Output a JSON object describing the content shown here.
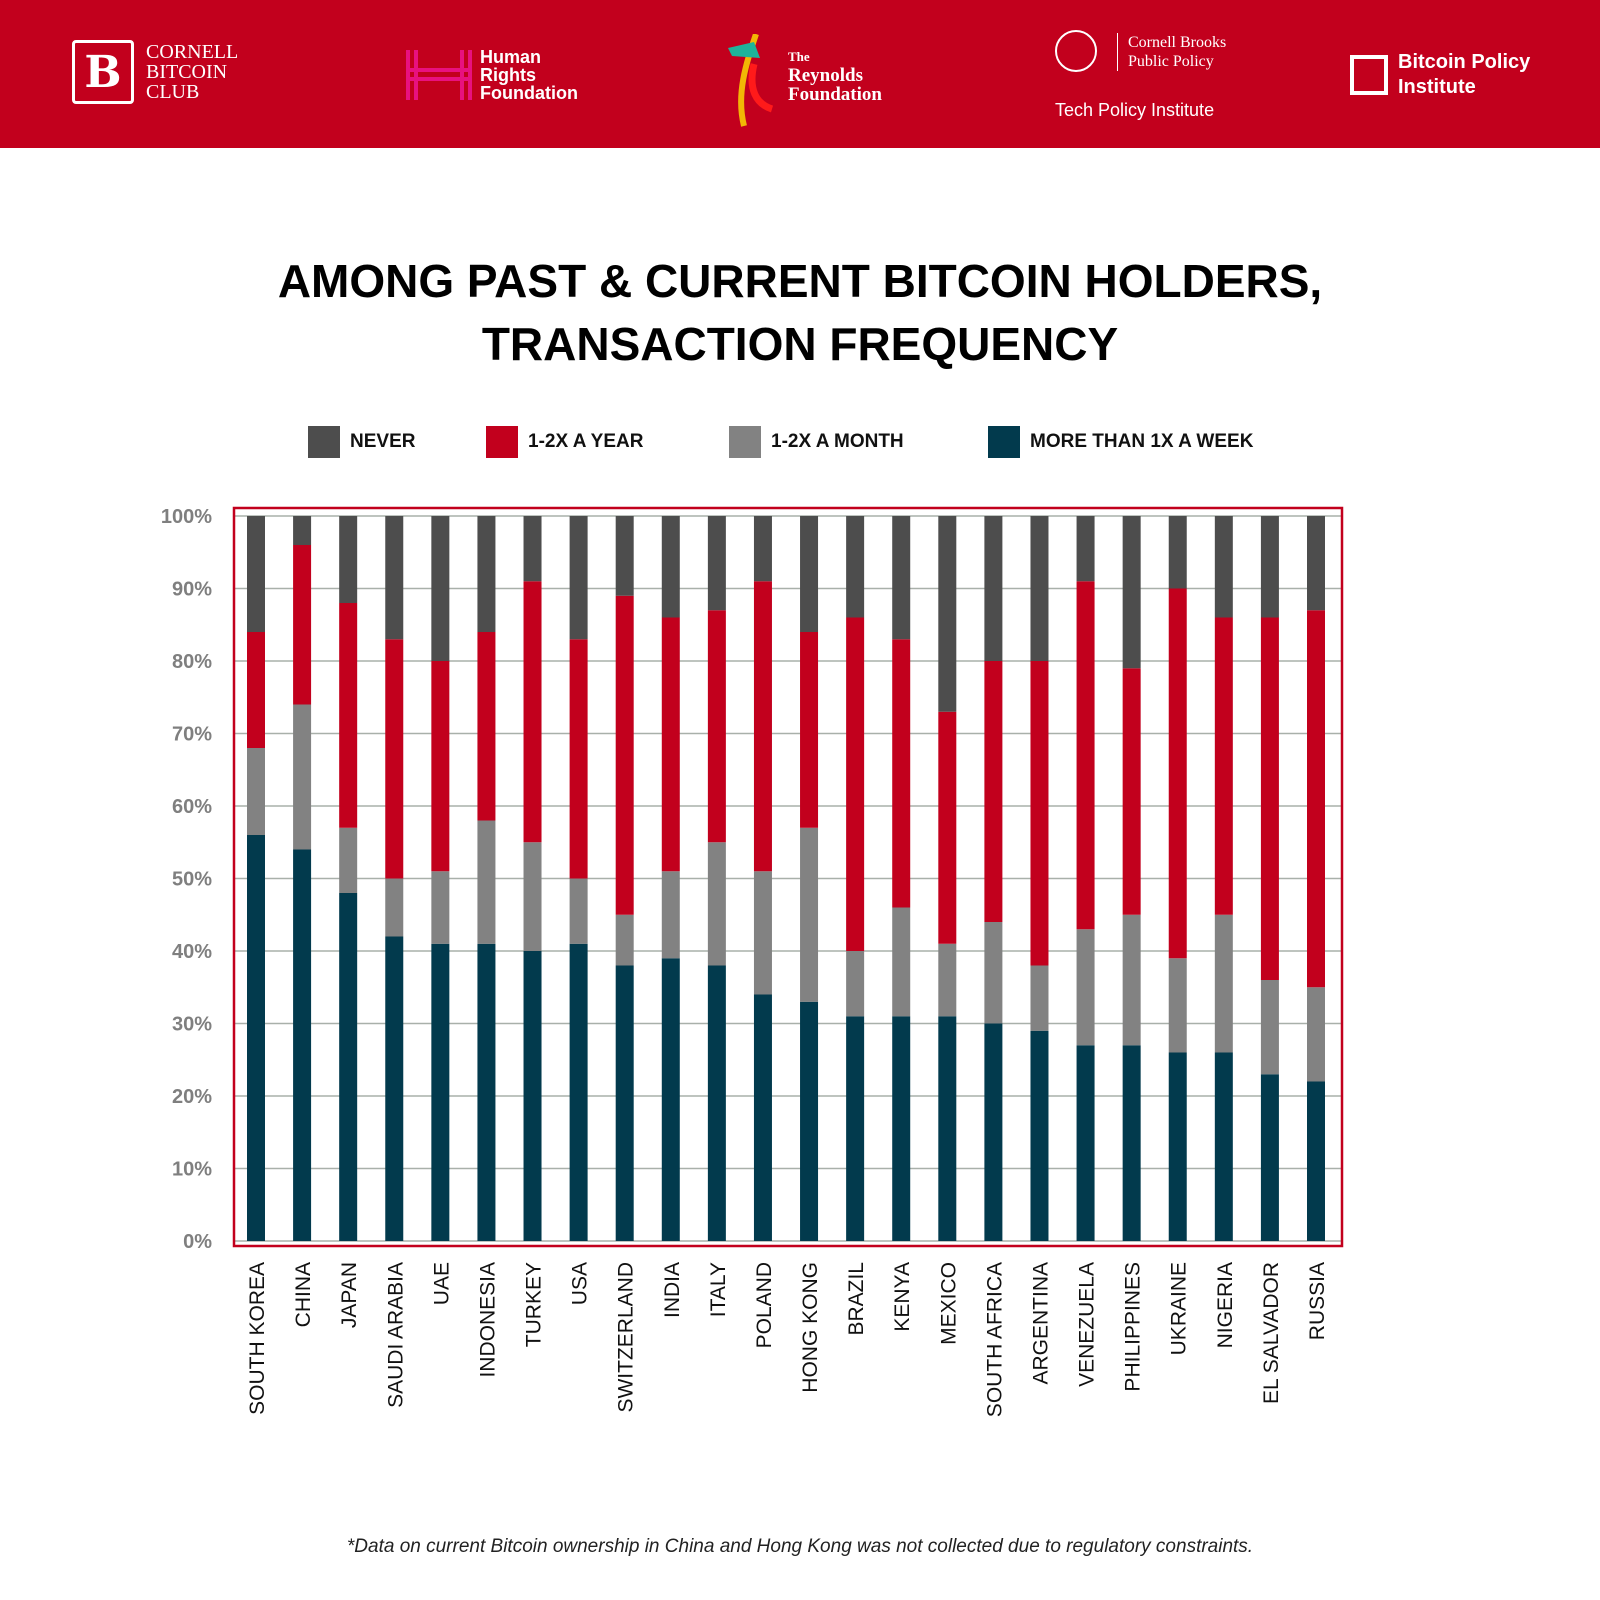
{
  "header": {
    "logos": {
      "cornell_bitcoin_club": "CORNELL\nBITCOIN\nCLUB",
      "human_rights_foundation": "Human\nRights\nFoundation",
      "reynolds_the": "The",
      "reynolds_name": "Reynolds\nFoundation",
      "cornell_brooks": "Cornell Brooks\nPublic Policy",
      "tech_policy": "Tech Policy Institute",
      "bitcoin_policy_institute": "Bitcoin Policy\nInstitute"
    }
  },
  "footnote": "*Data on current Bitcoin ownership in China and Hong Kong was not collected due to regulatory constraints.",
  "chart_data": {
    "type": "bar",
    "stacked": true,
    "title_line1": "AMONG PAST & CURRENT BITCOIN HOLDERS,",
    "title_line2": "TRANSACTION FREQUENCY",
    "xlabel": "",
    "ylabel": "",
    "ylim": [
      0,
      100
    ],
    "yticks": [
      "0%",
      "10%",
      "20%",
      "30%",
      "40%",
      "50%",
      "60%",
      "70%",
      "80%",
      "90%",
      "100%"
    ],
    "grid": true,
    "legend_position": "top",
    "legend": [
      "NEVER",
      "1-2X A YEAR",
      "1-2X A MONTH",
      "MORE THAN 1X A WEEK"
    ],
    "colors": {
      "never": "#4d4d4d",
      "year": "#c2001d",
      "month": "#828282",
      "week": "#023a4d",
      "frame": "#c2001d",
      "grid": "#a9b0aa",
      "tick": "#7f7f7f"
    },
    "categories": [
      "SOUTH KOREA",
      "CHINA",
      "JAPAN",
      "SAUDI ARABIA",
      "UAE",
      "INDONESIA",
      "TURKEY",
      "USA",
      "SWITZERLAND",
      "INDIA",
      "ITALY",
      "POLAND",
      "HONG KONG",
      "BRAZIL",
      "KENYA",
      "MEXICO",
      "SOUTH AFRICA",
      "ARGENTINA",
      "VENEZUELA",
      "PHILIPPINES",
      "UKRAINE",
      "NIGERIA",
      "EL SALVADOR",
      "RUSSIA"
    ],
    "series": [
      {
        "name": "MORE THAN 1X A WEEK",
        "key": "week",
        "values": [
          56,
          54,
          48,
          42,
          41,
          41,
          40,
          41,
          38,
          39,
          38,
          34,
          33,
          31,
          31,
          31,
          30,
          29,
          27,
          27,
          26,
          26,
          23,
          22
        ]
      },
      {
        "name": "1-2X A MONTH",
        "key": "month",
        "values": [
          12,
          20,
          9,
          8,
          10,
          17,
          15,
          9,
          7,
          12,
          17,
          17,
          24,
          9,
          15,
          10,
          14,
          9,
          16,
          18,
          13,
          19,
          13,
          13
        ]
      },
      {
        "name": "1-2X A YEAR",
        "key": "year",
        "values": [
          16,
          22,
          31,
          33,
          29,
          26,
          36,
          33,
          44,
          35,
          32,
          40,
          27,
          46,
          37,
          32,
          36,
          42,
          48,
          34,
          51,
          41,
          50,
          52
        ]
      },
      {
        "name": "NEVER",
        "key": "never",
        "values": [
          16,
          4,
          12,
          17,
          20,
          16,
          9,
          17,
          11,
          14,
          13,
          9,
          16,
          14,
          17,
          27,
          20,
          20,
          9,
          21,
          10,
          14,
          14,
          13
        ]
      }
    ]
  }
}
